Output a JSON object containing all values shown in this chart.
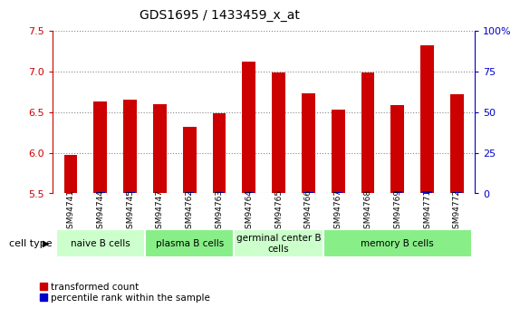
{
  "title": "GDS1695 / 1433459_x_at",
  "samples": [
    "GSM94741",
    "GSM94744",
    "GSM94745",
    "GSM94747",
    "GSM94762",
    "GSM94763",
    "GSM94764",
    "GSM94765",
    "GSM94766",
    "GSM94767",
    "GSM94768",
    "GSM94769",
    "GSM94771",
    "GSM94772"
  ],
  "transformed_count": [
    5.97,
    6.63,
    6.65,
    6.6,
    6.32,
    6.48,
    7.12,
    6.99,
    6.73,
    6.53,
    6.99,
    6.58,
    7.32,
    6.72
  ],
  "percentile_rank": [
    2,
    5,
    4,
    3,
    4,
    4,
    4,
    3,
    5,
    5,
    3,
    8,
    8,
    5
  ],
  "ylim_left": [
    5.5,
    7.5
  ],
  "ylim_right": [
    0,
    100
  ],
  "yticks_left": [
    5.5,
    6.0,
    6.5,
    7.0,
    7.5
  ],
  "yticks_right": [
    0,
    25,
    50,
    75,
    100
  ],
  "ytick_right_labels": [
    "0",
    "25",
    "50",
    "75",
    "100%"
  ],
  "cell_groups": [
    {
      "label": "naive B cells",
      "start": 0,
      "end": 3,
      "color": "#ccffcc"
    },
    {
      "label": "plasma B cells",
      "start": 3,
      "end": 6,
      "color": "#88ee88"
    },
    {
      "label": "germinal center B\ncells",
      "start": 6,
      "end": 9,
      "color": "#ccffcc"
    },
    {
      "label": "memory B cells",
      "start": 9,
      "end": 14,
      "color": "#88ee88"
    }
  ],
  "bar_color_red": "#cc0000",
  "bar_color_blue": "#0000cc",
  "bar_width": 0.45,
  "grid_color": "#888888",
  "bg_color": "#ffffff",
  "tick_color_left": "#cc0000",
  "tick_color_right": "#0000cc",
  "legend_red_label": "transformed count",
  "legend_blue_label": "percentile rank within the sample",
  "cell_type_label": "cell type"
}
